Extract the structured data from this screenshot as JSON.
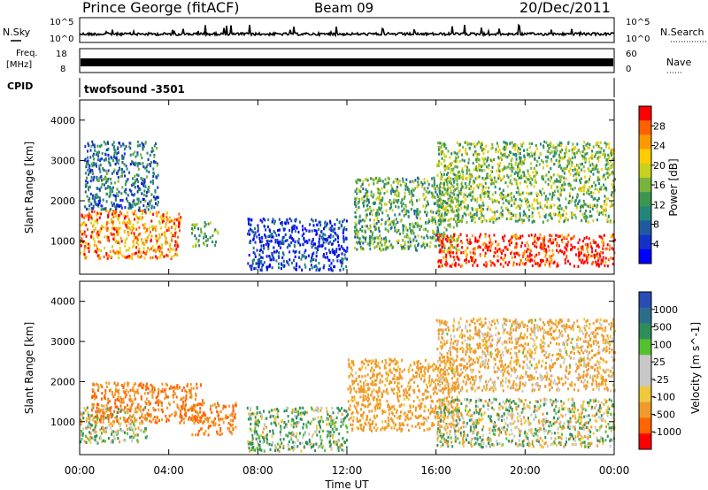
{
  "header": {
    "station": "Prince George (fitACF)",
    "beam": "Beam 09",
    "date": "20/Dec/2011"
  },
  "strips": {
    "nsky": {
      "label": "N.Sky",
      "right_label": "N.Search",
      "ticks_left": [
        "10^5",
        "10^0"
      ],
      "ticks_right": [
        "10^5",
        "10^0"
      ]
    },
    "freq": {
      "label_line1": "Freq.",
      "label_line2": "[MHz]",
      "right_label": "Nave",
      "ticks_left": [
        "18",
        "8"
      ],
      "ticks_right": [
        "60",
        "0"
      ]
    },
    "cpid": {
      "label": "CPID",
      "value": "twofsound -3501"
    }
  },
  "axes": {
    "xlabel": "Time UT",
    "xticks": [
      "00:00",
      "04:00",
      "08:00",
      "12:00",
      "16:00",
      "20:00",
      "00:00"
    ],
    "ylabel": "Slant Range [km]",
    "yticks": [
      "1000",
      "2000",
      "3000",
      "4000"
    ]
  },
  "colorbars": {
    "power": {
      "label": "Power [dB]",
      "ticks": [
        "28",
        "24",
        "20",
        "16",
        "12",
        "8",
        "4"
      ],
      "colors": [
        "#ff0000",
        "#ff6000",
        "#ff9900",
        "#ffcc00",
        "#c8d21e",
        "#78b43c",
        "#3c9650",
        "#22877a",
        "#1f5aa0",
        "#1432c8",
        "#0000ff"
      ]
    },
    "velocity": {
      "label": "Velocity [m s^-1]",
      "ticks": [
        "1000",
        "500",
        "100",
        "25",
        "-25",
        "-100",
        "-500",
        "-1000"
      ],
      "colors": [
        "#2a4cb4",
        "#2c6e8a",
        "#2e8e5a",
        "#52c030",
        "#c8c8c8",
        "#c8c8c8",
        "#f0c83c",
        "#f09a2a",
        "#ff6400",
        "#ff0000"
      ]
    }
  },
  "chart_data": [
    {
      "type": "heatmap",
      "title": "Power [dB]",
      "xlabel": "Time UT",
      "ylabel": "Slant Range [km]",
      "x_range_hours": [
        0,
        24
      ],
      "ylim": [
        180,
        4500
      ],
      "color_scale": [
        0,
        30
      ],
      "echo_regions": [
        {
          "t_start": 0.0,
          "t_end": 4.5,
          "range_low": 600,
          "range_high": 1800,
          "power_db": 24
        },
        {
          "t_start": 0.2,
          "t_end": 3.5,
          "range_low": 1800,
          "range_high": 3500,
          "power_db": 10
        },
        {
          "t_start": 5.0,
          "t_end": 6.2,
          "range_low": 900,
          "range_high": 1500,
          "power_db": 14
        },
        {
          "t_start": 7.5,
          "t_end": 12.0,
          "range_low": 300,
          "range_high": 1600,
          "power_db": 6
        },
        {
          "t_start": 12.3,
          "t_end": 17.0,
          "range_low": 800,
          "range_high": 2600,
          "power_db": 14
        },
        {
          "t_start": 16.0,
          "t_end": 24.0,
          "range_low": 400,
          "range_high": 1200,
          "power_db": 28
        },
        {
          "t_start": 16.0,
          "t_end": 24.0,
          "range_low": 1500,
          "range_high": 3500,
          "power_db": 16
        }
      ]
    },
    {
      "type": "heatmap",
      "title": "Velocity [m s^-1]",
      "xlabel": "Time UT",
      "ylabel": "Slant Range [km]",
      "x_range_hours": [
        0,
        24
      ],
      "ylim": [
        180,
        4500
      ],
      "color_scale": [
        -1000,
        1000
      ],
      "echo_regions": [
        {
          "t_start": 0.0,
          "t_end": 3.0,
          "range_low": 500,
          "range_high": 1400,
          "velocity": 0
        },
        {
          "t_start": 0.5,
          "t_end": 5.5,
          "range_low": 1000,
          "range_high": 2000,
          "velocity": -300
        },
        {
          "t_start": 5.0,
          "t_end": 7.0,
          "range_low": 700,
          "range_high": 1500,
          "velocity": -300
        },
        {
          "t_start": 7.5,
          "t_end": 12.0,
          "range_low": 300,
          "range_high": 1400,
          "velocity": 50
        },
        {
          "t_start": 12.0,
          "t_end": 17.0,
          "range_low": 800,
          "range_high": 2600,
          "velocity": -150
        },
        {
          "t_start": 16.0,
          "t_end": 24.0,
          "range_low": 400,
          "range_high": 1600,
          "velocity": 0
        },
        {
          "t_start": 16.0,
          "t_end": 24.0,
          "range_low": 1800,
          "range_high": 3600,
          "velocity": -100
        }
      ]
    }
  ]
}
